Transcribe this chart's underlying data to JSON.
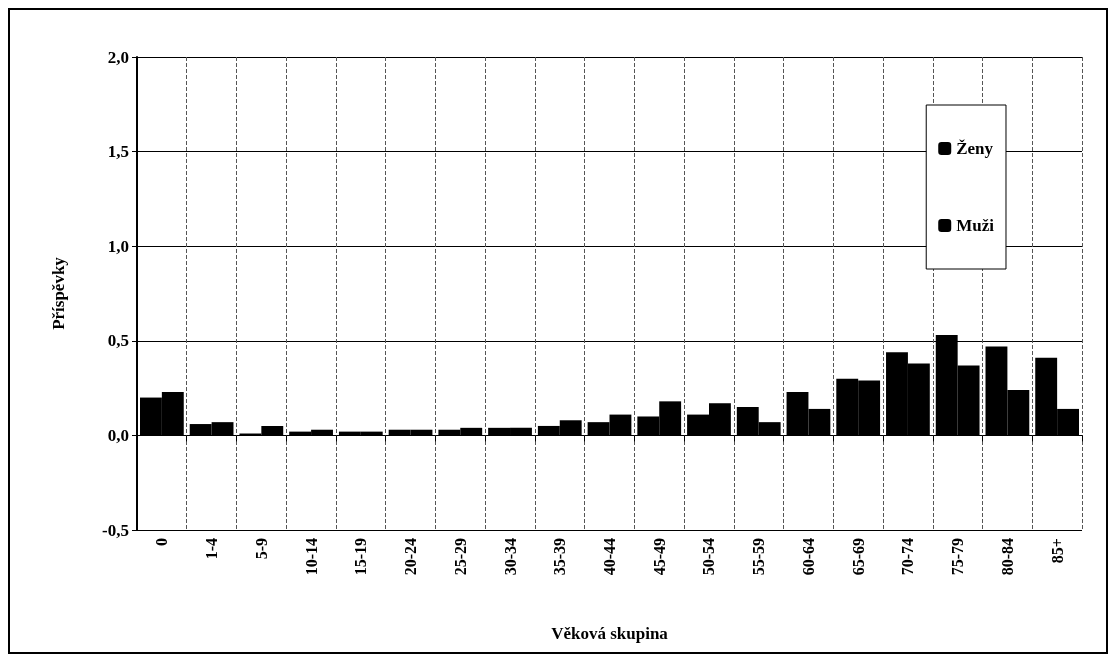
{
  "chart_data": {
    "type": "bar",
    "xlabel": "Věková skupina",
    "ylabel": "Příspěvky",
    "categories": [
      "0",
      "1-4",
      "5-9",
      "10-14",
      "15-19",
      "20-24",
      "25-29",
      "30-34",
      "35-39",
      "40-44",
      "45-49",
      "50-54",
      "55-59",
      "60-64",
      "65-69",
      "70-74",
      "75-79",
      "80-84",
      "85+"
    ],
    "series": [
      {
        "name": "Ženy",
        "color": "#000000",
        "values": [
          0.2,
          0.06,
          0.01,
          0.02,
          0.02,
          0.03,
          0.03,
          0.04,
          0.05,
          0.07,
          0.1,
          0.11,
          0.15,
          0.23,
          0.3,
          0.44,
          0.53,
          0.47,
          0.41
        ]
      },
      {
        "name": "Muži",
        "color": "#000000",
        "values": [
          0.23,
          0.07,
          0.05,
          0.03,
          0.02,
          0.03,
          0.04,
          0.04,
          0.08,
          0.11,
          0.18,
          0.17,
          0.07,
          0.14,
          0.29,
          0.38,
          0.37,
          0.24,
          0.14
        ]
      }
    ],
    "ylim": [
      -0.5,
      2
    ],
    "yticks": [
      {
        "value": -0.5,
        "label": "-0,5"
      },
      {
        "value": 0,
        "label": "0,0"
      },
      {
        "value": 0.5,
        "label": "0,5"
      },
      {
        "value": 1,
        "label": "1,0"
      },
      {
        "value": 1.5,
        "label": "1,5"
      },
      {
        "value": 2,
        "label": "2,0"
      }
    ],
    "grid": true,
    "legend": "top right"
  }
}
